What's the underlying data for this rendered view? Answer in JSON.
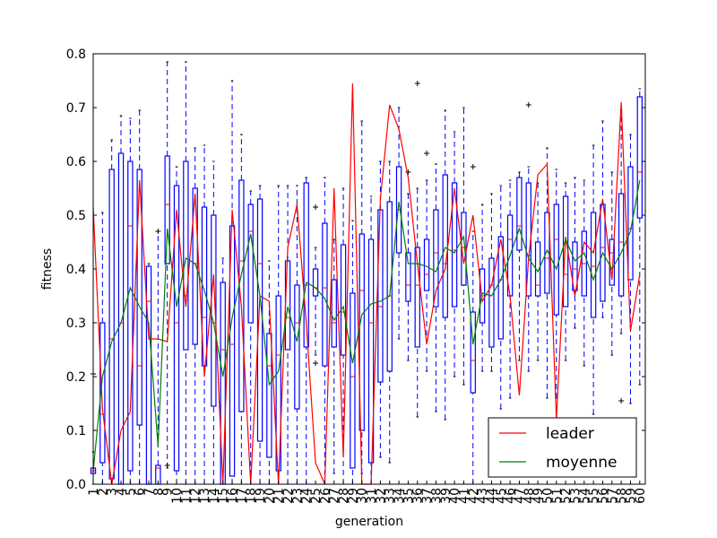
{
  "chart_data": {
    "type": "boxplot",
    "x_label": "generation",
    "y_label": "fitness",
    "categories": [
      "1",
      "2",
      "3",
      "4",
      "5",
      "6",
      "7",
      "8",
      "9",
      "10",
      "11",
      "12",
      "13",
      "14",
      "15",
      "16",
      "17",
      "18",
      "19",
      "20",
      "21",
      "22",
      "23",
      "24",
      "25",
      "26",
      "27",
      "28",
      "29",
      "30",
      "31",
      "32",
      "33",
      "34",
      "35",
      "36",
      "37",
      "38",
      "39",
      "40",
      "41",
      "42",
      "43",
      "44",
      "45",
      "46",
      "47",
      "48",
      "49",
      "50",
      "51",
      "52",
      "53",
      "54",
      "55",
      "56",
      "57",
      "58",
      "59",
      "60"
    ],
    "label_colors": [
      "#000000",
      "#000000",
      "#ff0000",
      "#ff0000",
      "#ff0000",
      "#ff0000",
      "#000000",
      "#ff0000",
      "#ff0000",
      "#000000",
      "#000000",
      "#ff0000",
      "#ff0000",
      "#ff0000",
      "#ff0000",
      "#ff0000",
      "#000000",
      "#ff0000",
      "#ff0000",
      "#ff0000",
      "#000000",
      "#000000",
      "#ff0000",
      "#000000",
      "#000000",
      "#ff0000",
      "#000000",
      "#ff0000",
      "#ff0000",
      "#ff0000",
      "#000000",
      "#000000",
      "#000000",
      "#000000",
      "#000000",
      "#000000",
      "#000000",
      "#000000",
      "#000000",
      "#000000",
      "#000000",
      "#000000",
      "#000000",
      "#000000",
      "#000000",
      "#000000",
      "#000000",
      "#000000",
      "#000000",
      "#000000",
      "#000000",
      "#000000",
      "#000000",
      "#000000",
      "#000000",
      "#000000",
      "#000000",
      "#000000",
      "#000000",
      "#000000"
    ],
    "box_color": "#0000ff",
    "median_color": "#ff0000",
    "boxes": [
      [
        0.0,
        0.02,
        0.025,
        0.03,
        0.06
      ],
      [
        0,
        0.04,
        0.13,
        0.3,
        0.505
      ],
      [
        0,
        0.01,
        0.27,
        0.585,
        0.64
      ],
      [
        0,
        0,
        0.3,
        0.615,
        0.685
      ],
      [
        0,
        0.025,
        0.48,
        0.6,
        0.68
      ],
      [
        0,
        0.11,
        0.22,
        0.585,
        0.695
      ],
      [
        0,
        0,
        0.34,
        0.405,
        0.41
      ],
      [
        0,
        0,
        0.03,
        0.035,
        0.47
      ],
      [
        0.03,
        0.41,
        0.52,
        0.61,
        0.785
      ],
      [
        0,
        0.025,
        0.3,
        0.555,
        0.59
      ],
      [
        0,
        0.25,
        0.35,
        0.6,
        0.785
      ],
      [
        0,
        0.26,
        0.41,
        0.55,
        0.625
      ],
      [
        0,
        0.22,
        0.31,
        0.515,
        0.63
      ],
      [
        0,
        0.145,
        0.3,
        0.5,
        0.6
      ],
      [
        0,
        0,
        0.25,
        0.375,
        0.42
      ],
      [
        0,
        0.015,
        0.26,
        0.48,
        0.75
      ],
      [
        0,
        0.135,
        0.415,
        0.565,
        0.65
      ],
      [
        0,
        0.3,
        0.47,
        0.52,
        0.545
      ],
      [
        0,
        0.08,
        0.41,
        0.53,
        0.555
      ],
      [
        0,
        0.05,
        0.22,
        0.28,
        0.415
      ],
      [
        0,
        0.025,
        0.24,
        0.35,
        0.555
      ],
      [
        0,
        0.25,
        0.31,
        0.415,
        0.555
      ],
      [
        0,
        0.14,
        0.3,
        0.37,
        0.555
      ],
      [
        0,
        0.255,
        0.37,
        0.56,
        0.57
      ],
      [
        0.24,
        0.35,
        0.365,
        0.4,
        0.44
      ],
      [
        0,
        0.22,
        0.365,
        0.485,
        0.57
      ],
      [
        0.02,
        0.255,
        0.3,
        0.38,
        0.455
      ],
      [
        0,
        0.24,
        0.32,
        0.445,
        0.55
      ],
      [
        0,
        0.03,
        0.2,
        0.355,
        0.49
      ],
      [
        0.02,
        0.1,
        0.36,
        0.465,
        0.675
      ],
      [
        0,
        0.04,
        0.3,
        0.455,
        0.535
      ],
      [
        0.05,
        0.19,
        0.33,
        0.51,
        0.6
      ],
      [
        0.04,
        0.21,
        0.35,
        0.525,
        0.6
      ],
      [
        0.27,
        0.43,
        0.51,
        0.59,
        0.7
      ],
      [
        0.23,
        0.34,
        0.37,
        0.43,
        0.54
      ],
      [
        0.125,
        0.255,
        0.37,
        0.44,
        0.55
      ],
      [
        0.21,
        0.36,
        0.39,
        0.455,
        0.565
      ],
      [
        0.135,
        0.33,
        0.43,
        0.51,
        0.595
      ],
      [
        0.12,
        0.31,
        0.41,
        0.575,
        0.695
      ],
      [
        0.2,
        0.33,
        0.435,
        0.56,
        0.655
      ],
      [
        0.185,
        0.37,
        0.44,
        0.505,
        0.7
      ],
      [
        0,
        0.17,
        0.23,
        0.32,
        0.47
      ],
      [
        0.21,
        0.3,
        0.35,
        0.4,
        0.52
      ],
      [
        0.21,
        0.255,
        0.37,
        0.42,
        0.54
      ],
      [
        0.14,
        0.27,
        0.38,
        0.46,
        0.555
      ],
      [
        0.16,
        0.35,
        0.455,
        0.5,
        0.565
      ],
      [
        0.23,
        0.435,
        0.48,
        0.57,
        0.58
      ],
      [
        0.21,
        0.35,
        0.425,
        0.56,
        0.59
      ],
      [
        0.23,
        0.35,
        0.37,
        0.45,
        0.56
      ],
      [
        0.16,
        0.355,
        0.42,
        0.505,
        0.625
      ],
      [
        0.16,
        0.315,
        0.455,
        0.52,
        0.585
      ],
      [
        0.23,
        0.33,
        0.39,
        0.535,
        0.56
      ],
      [
        0.29,
        0.36,
        0.4,
        0.45,
        0.57
      ],
      [
        0.22,
        0.35,
        0.41,
        0.47,
        0.565
      ],
      [
        0.13,
        0.31,
        0.405,
        0.505,
        0.63
      ],
      [
        0.31,
        0.34,
        0.44,
        0.52,
        0.675
      ],
      [
        0.24,
        0.37,
        0.43,
        0.455,
        0.58
      ],
      [
        0.28,
        0.35,
        0.45,
        0.54,
        0.695
      ],
      [
        0.15,
        0.38,
        0.475,
        0.59,
        0.65
      ],
      [
        0.185,
        0.495,
        0.58,
        0.72,
        0.735
      ]
    ],
    "outliers": [
      {
        "x": 1,
        "y": 0.205
      },
      {
        "x": 8,
        "y": 0.47
      },
      {
        "x": 9,
        "y": 0.035
      },
      {
        "x": 25,
        "y": 0.515
      },
      {
        "x": 25,
        "y": 0.225
      },
      {
        "x": 35,
        "y": 0.58
      },
      {
        "x": 36,
        "y": 0.745
      },
      {
        "x": 37,
        "y": 0.615
      },
      {
        "x": 42,
        "y": 0.59
      },
      {
        "x": 48,
        "y": 0.705
      },
      {
        "x": 58,
        "y": 0.155
      }
    ],
    "series": [
      {
        "name": "leader",
        "color": "#ff0000",
        "values": [
          0.515,
          0.14,
          0.0,
          0.1,
          0.135,
          0.565,
          0.27,
          0.27,
          0.265,
          0.51,
          0.33,
          0.54,
          0.2,
          0.39,
          0.0,
          0.51,
          0.33,
          0.0,
          0.35,
          0.34,
          0.0,
          0.44,
          0.52,
          0.3,
          0.04,
          0.0,
          0.55,
          0.05,
          0.745,
          0.0,
          0.0,
          0.53,
          0.705,
          0.66,
          0.57,
          0.41,
          0.26,
          0.36,
          0.4,
          0.55,
          0.41,
          0.5,
          0.34,
          0.37,
          0.455,
          0.35,
          0.165,
          0.42,
          0.575,
          0.595,
          0.12,
          0.46,
          0.35,
          0.45,
          0.43,
          0.53,
          0.38,
          0.71,
          0.285,
          0.39
        ]
      },
      {
        "name": "moyenne",
        "color": "#008000",
        "values": [
          0.025,
          0.2,
          0.265,
          0.3,
          0.365,
          0.33,
          0.3,
          0.07,
          0.475,
          0.33,
          0.42,
          0.41,
          0.36,
          0.3,
          0.2,
          0.31,
          0.39,
          0.465,
          0.35,
          0.185,
          0.21,
          0.33,
          0.265,
          0.375,
          0.365,
          0.345,
          0.305,
          0.33,
          0.225,
          0.315,
          0.335,
          0.34,
          0.35,
          0.525,
          0.41,
          0.41,
          0.405,
          0.395,
          0.44,
          0.43,
          0.46,
          0.26,
          0.355,
          0.35,
          0.38,
          0.425,
          0.475,
          0.42,
          0.395,
          0.435,
          0.4,
          0.455,
          0.415,
          0.43,
          0.38,
          0.43,
          0.4,
          0.43,
          0.47,
          0.565
        ]
      }
    ],
    "xlim": [
      1,
      60.6
    ],
    "ylim": [
      0,
      0.8
    ],
    "yticks": [
      {
        "value": 0,
        "label": "0.0"
      },
      0.1,
      0.2,
      0.3,
      0.4,
      0.5,
      0.6,
      0.7,
      0.8
    ],
    "legend": "lower right"
  }
}
